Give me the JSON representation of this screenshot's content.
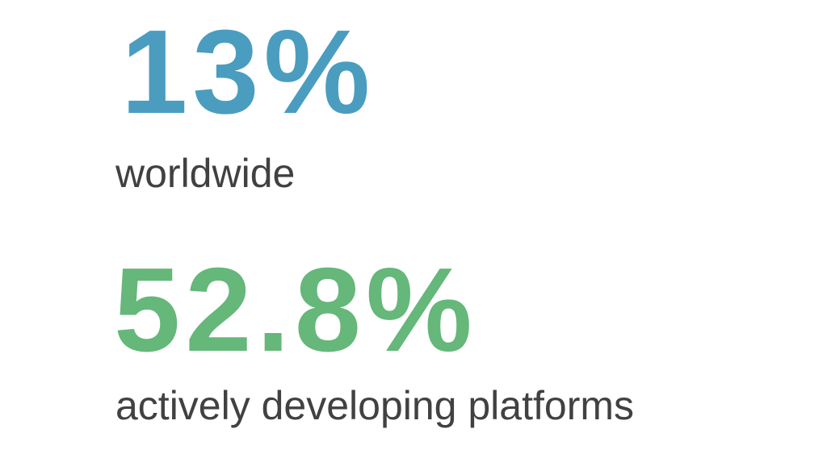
{
  "stats": [
    {
      "value": "13%",
      "label": "worldwide",
      "color": "#4a9dbf"
    },
    {
      "value": "52.8%",
      "label": "actively developing platforms",
      "color": "#65b77a"
    }
  ]
}
